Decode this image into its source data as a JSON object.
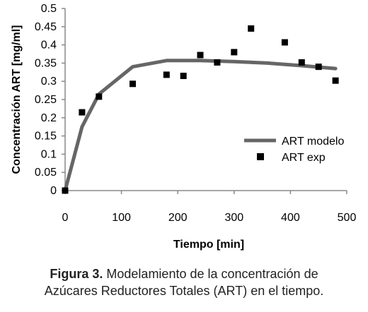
{
  "chart_data": {
    "type": "line",
    "xlabel": "Tiempo [min]",
    "ylabel": "Concentración ART [mg/ml]",
    "xlim": [
      0,
      500
    ],
    "ylim": [
      0,
      0.5
    ],
    "x_ticks": [
      "0",
      "100",
      "200",
      "300",
      "400",
      "500"
    ],
    "y_ticks": [
      "0",
      "0.05",
      "0.1",
      "0.15",
      "0.2",
      "0.25",
      "0.3",
      "0.35",
      "0.4",
      "0.45",
      "0.5"
    ],
    "grid": false,
    "legend_position": "right",
    "series": [
      {
        "name": "ART modelo",
        "kind": "line",
        "color": "#666666",
        "x": [
          0,
          30,
          60,
          120,
          180,
          240,
          300,
          360,
          420,
          480
        ],
        "y": [
          0.0,
          0.175,
          0.265,
          0.34,
          0.357,
          0.357,
          0.354,
          0.35,
          0.343,
          0.335
        ]
      },
      {
        "name": "ART exp",
        "kind": "scatter",
        "color": "#000000",
        "x": [
          0,
          30,
          60,
          120,
          180,
          210,
          240,
          270,
          300,
          330,
          390,
          420,
          450,
          480
        ],
        "y": [
          0.0,
          0.215,
          0.258,
          0.293,
          0.318,
          0.315,
          0.372,
          0.352,
          0.38,
          0.445,
          0.407,
          0.352,
          0.34,
          0.302
        ]
      }
    ]
  },
  "caption": {
    "label": "Figura 3.",
    "line1": "Modelamiento de la concentración de",
    "line2": "Azúcares Reductores Totales (ART) en el tiempo."
  }
}
